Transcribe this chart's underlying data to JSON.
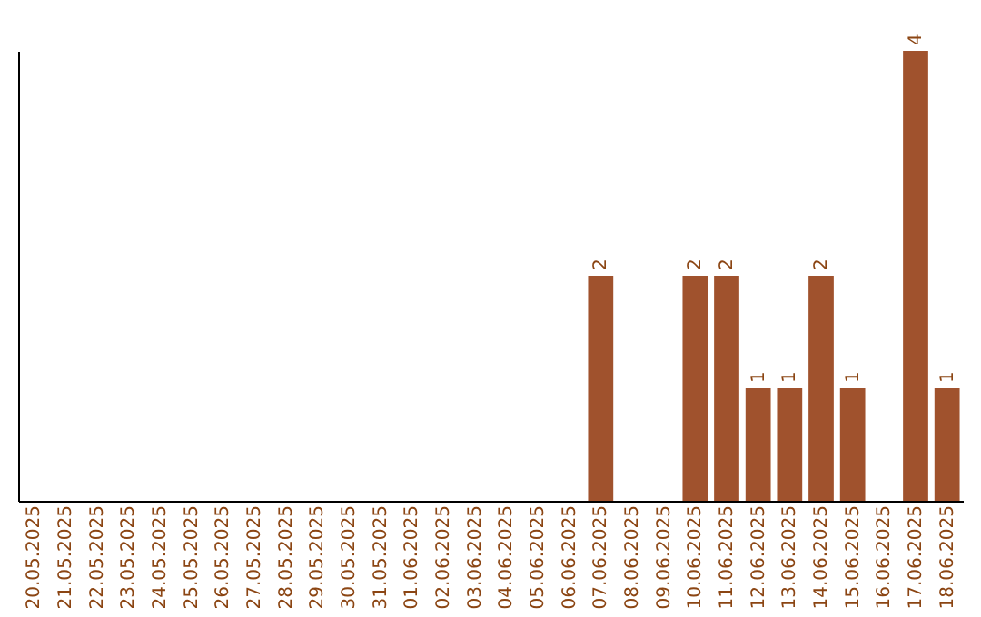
{
  "chart_data": {
    "type": "bar",
    "categories": [
      "20.05.2025",
      "21.05.2025",
      "22.05.2025",
      "23.05.2025",
      "24.05.2025",
      "25.05.2025",
      "26.05.2025",
      "27.05.2025",
      "28.05.2025",
      "29.05.2025",
      "30.05.2025",
      "31.05.2025",
      "01.06.2025",
      "02.06.2025",
      "03.06.2025",
      "04.06.2025",
      "05.06.2025",
      "06.06.2025",
      "07.06.2025",
      "08.06.2025",
      "09.06.2025",
      "10.06.2025",
      "11.06.2025",
      "12.06.2025",
      "13.06.2025",
      "14.06.2025",
      "15.06.2025",
      "16.06.2025",
      "17.06.2025",
      "18.06.2025"
    ],
    "values": [
      null,
      null,
      null,
      null,
      null,
      null,
      null,
      null,
      null,
      null,
      null,
      null,
      null,
      null,
      null,
      null,
      null,
      null,
      2,
      null,
      null,
      2,
      2,
      1,
      1,
      2,
      1,
      null,
      4,
      1
    ],
    "value_labels": [
      null,
      null,
      null,
      null,
      null,
      null,
      null,
      null,
      null,
      null,
      null,
      null,
      null,
      null,
      null,
      null,
      null,
      null,
      "2",
      null,
      null,
      "2",
      "2",
      "1",
      "1",
      "2",
      "1",
      null,
      "4",
      "1"
    ],
    "color": "#a0522d",
    "grid": false,
    "tick_labels": "x"
  }
}
